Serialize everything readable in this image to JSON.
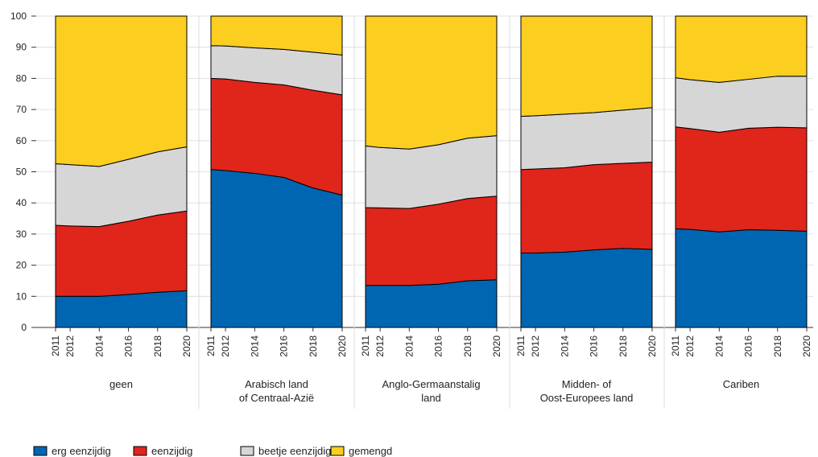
{
  "chart_data": {
    "type": "area",
    "stacked": true,
    "ylim": [
      0,
      100
    ],
    "yticks": [
      0,
      10,
      20,
      30,
      40,
      50,
      60,
      70,
      80,
      90,
      100
    ],
    "grid": true,
    "legend_position": "bottom-left",
    "series": [
      {
        "name": "erg eenzijdig",
        "color": "#0066b2"
      },
      {
        "name": "eenzijdig",
        "color": "#e0251b"
      },
      {
        "name": "beetje eenzijdig",
        "color": "#d6d6d6"
      },
      {
        "name": "gemengd",
        "color": "#fcce1f"
      }
    ],
    "panels": [
      {
        "label": [
          "geen"
        ],
        "x": [
          2011,
          2012,
          2014,
          2016,
          2018,
          2020
        ],
        "values": [
          [
            10,
            10,
            10,
            10.6,
            11.3,
            11.8
          ],
          [
            22.8,
            22.6,
            22.4,
            23.5,
            24.8,
            25.6
          ],
          [
            19.8,
            19.7,
            19.3,
            19.9,
            20.3,
            20.6
          ],
          [
            47.4,
            47.7,
            48.3,
            46.0,
            43.6,
            42.0
          ]
        ]
      },
      {
        "label": [
          "Arabisch land",
          "of Centraal-Azië"
        ],
        "x": [
          2011,
          2012,
          2014,
          2016,
          2018,
          2020
        ],
        "values": [
          [
            50.7,
            50.4,
            49.5,
            48.2,
            44.8,
            42.5
          ],
          [
            29.3,
            29.4,
            29.2,
            29.7,
            31.4,
            32.2
          ],
          [
            10.5,
            10.6,
            11.1,
            11.4,
            12.2,
            12.8
          ],
          [
            9.5,
            9.6,
            10.2,
            10.7,
            11.6,
            12.5
          ]
        ]
      },
      {
        "label": [
          "Anglo-Germaanstalig",
          "land"
        ],
        "x": [
          2011,
          2012,
          2014,
          2016,
          2018,
          2020
        ],
        "values": [
          [
            13.5,
            13.5,
            13.5,
            13.9,
            15.0,
            15.3
          ],
          [
            25.0,
            24.9,
            24.7,
            25.7,
            26.4,
            26.9
          ],
          [
            19.8,
            19.4,
            19.1,
            19.1,
            19.4,
            19.4
          ],
          [
            41.7,
            42.2,
            42.7,
            41.3,
            39.2,
            38.4
          ]
        ]
      },
      {
        "label": [
          "Midden- of",
          "Oost-Europees land"
        ],
        "x": [
          2011,
          2012,
          2014,
          2016,
          2018,
          2020
        ],
        "values": [
          [
            23.9,
            23.9,
            24.2,
            24.9,
            25.4,
            25.1
          ],
          [
            26.8,
            27.0,
            27.1,
            27.4,
            27.3,
            28.0
          ],
          [
            17.1,
            17.1,
            17.2,
            16.7,
            17.1,
            17.5
          ],
          [
            32.2,
            32.0,
            31.5,
            31.0,
            30.2,
            29.4
          ]
        ]
      },
      {
        "label": [
          "Cariben"
        ],
        "x": [
          2011,
          2012,
          2014,
          2016,
          2018,
          2020
        ],
        "values": [
          [
            31.7,
            31.5,
            30.7,
            31.4,
            31.2,
            30.9
          ],
          [
            32.7,
            32.4,
            32.0,
            32.6,
            33.1,
            33.2
          ],
          [
            15.8,
            15.7,
            16.0,
            15.7,
            16.4,
            16.6
          ],
          [
            19.8,
            20.4,
            21.3,
            20.3,
            19.3,
            19.3
          ]
        ]
      }
    ]
  }
}
